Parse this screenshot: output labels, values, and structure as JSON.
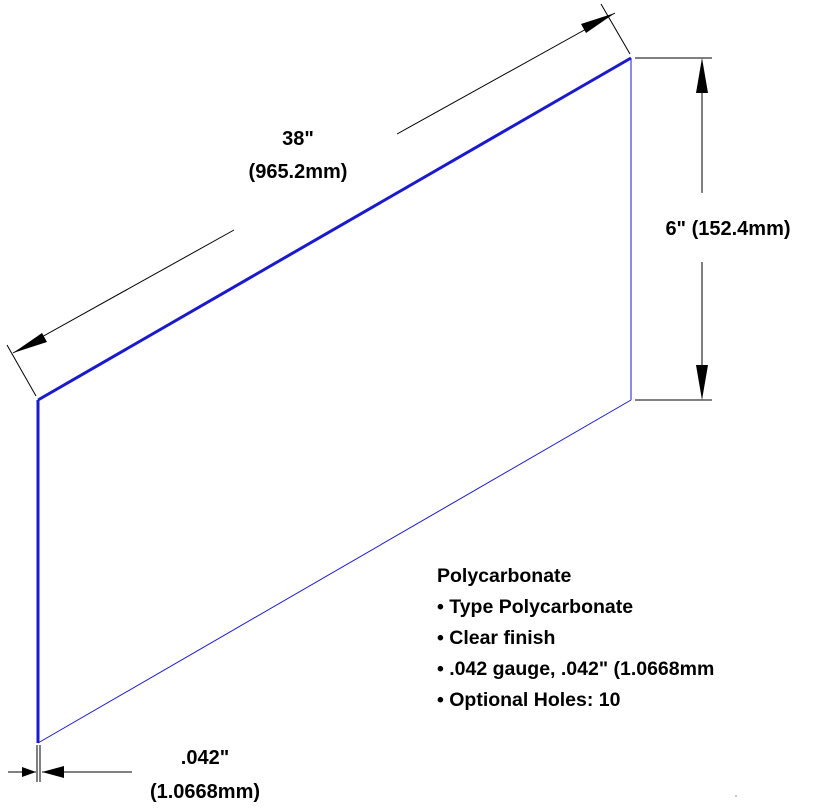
{
  "colors": {
    "panel_outline": "#1a1acc",
    "dimension": "#000000",
    "text": "#000000",
    "background": "#ffffff"
  },
  "dimensions": {
    "length": {
      "imperial": "38\"",
      "metric": "(965.2mm)"
    },
    "height": {
      "label": "6\" (152.4mm)"
    },
    "thickness": {
      "imperial": ".042\"",
      "metric": "(1.0668mm)"
    }
  },
  "specs": {
    "title": "Polycarbonate",
    "items": [
      "• Type Polycarbonate",
      "• Clear finish",
      "• .042 gauge, .042\" (1.0668mm",
      "• Optional Holes: 10"
    ]
  }
}
